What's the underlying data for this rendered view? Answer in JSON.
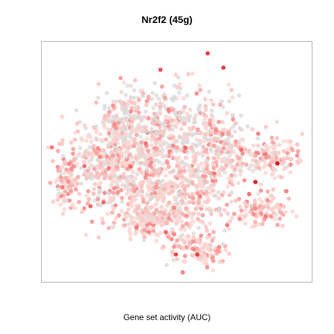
{
  "chart_data": {
    "type": "scatter",
    "title": "Nr2f2 (45g)",
    "xlabel": "Gene set activity (AUC)",
    "ylabel": "",
    "grid": false,
    "legend": "none",
    "color_scale": {
      "background_points": "#d9d9d9",
      "low": "#fbd6d2",
      "mid": "#f57b7b",
      "high": "#d7191c"
    },
    "clusters": [
      {
        "cx": 0.47,
        "cy": 0.35,
        "rx": 0.23,
        "ry": 0.16,
        "n": 430,
        "grey_frac": 0.45
      },
      {
        "cx": 0.27,
        "cy": 0.53,
        "rx": 0.16,
        "ry": 0.14,
        "n": 380,
        "grey_frac": 0.2
      },
      {
        "cx": 0.52,
        "cy": 0.62,
        "rx": 0.18,
        "ry": 0.16,
        "n": 380,
        "grey_frac": 0.22
      },
      {
        "cx": 0.68,
        "cy": 0.45,
        "rx": 0.1,
        "ry": 0.12,
        "n": 180,
        "grey_frac": 0.35
      },
      {
        "cx": 0.4,
        "cy": 0.74,
        "rx": 0.13,
        "ry": 0.08,
        "n": 170,
        "grey_frac": 0.12
      },
      {
        "cx": 0.86,
        "cy": 0.48,
        "rx": 0.09,
        "ry": 0.07,
        "n": 110,
        "grey_frac": 0.15
      },
      {
        "cx": 0.82,
        "cy": 0.7,
        "rx": 0.09,
        "ry": 0.07,
        "n": 110,
        "grey_frac": 0.1
      },
      {
        "cx": 0.58,
        "cy": 0.86,
        "rx": 0.1,
        "ry": 0.06,
        "n": 110,
        "grey_frac": 0.08
      },
      {
        "cx": 0.3,
        "cy": 0.32,
        "rx": 0.1,
        "ry": 0.1,
        "n": 120,
        "grey_frac": 0.45
      },
      {
        "cx": 0.09,
        "cy": 0.58,
        "rx": 0.05,
        "ry": 0.12,
        "n": 80,
        "grey_frac": 0.1
      }
    ],
    "highlighted_points": [
      {
        "x": 0.871,
        "y": 0.507,
        "level": 1.0
      },
      {
        "x": 0.79,
        "y": 0.584,
        "level": 0.95
      },
      {
        "x": 0.614,
        "y": 0.051,
        "level": 0.8
      },
      {
        "x": 0.672,
        "y": 0.11,
        "level": 0.8
      },
      {
        "x": 0.44,
        "y": 0.119,
        "level": 0.7
      },
      {
        "x": 0.576,
        "y": 0.884,
        "level": 0.8
      },
      {
        "x": 0.497,
        "y": 0.884,
        "level": 0.75
      },
      {
        "x": 0.532,
        "y": 0.442,
        "level": 0.6
      },
      {
        "x": 0.33,
        "y": 0.52,
        "level": 0.6
      },
      {
        "x": 0.16,
        "y": 0.518,
        "level": 0.55
      },
      {
        "x": 0.182,
        "y": 0.684,
        "level": 0.6
      },
      {
        "x": 0.23,
        "y": 0.668,
        "level": 0.6
      },
      {
        "x": 0.767,
        "y": 0.634,
        "level": 0.55
      },
      {
        "x": 0.738,
        "y": 0.45,
        "level": 0.55
      },
      {
        "x": 0.46,
        "y": 0.792,
        "level": 0.6
      },
      {
        "x": 0.686,
        "y": 0.762,
        "level": 0.5
      },
      {
        "x": 0.828,
        "y": 0.726,
        "level": 0.5
      },
      {
        "x": 0.04,
        "y": 0.44,
        "level": 0.5
      },
      {
        "x": 0.078,
        "y": 0.605,
        "level": 0.5
      },
      {
        "x": 0.386,
        "y": 0.424,
        "level": 0.55
      },
      {
        "x": 0.25,
        "y": 0.527,
        "level": 0.5
      },
      {
        "x": 0.352,
        "y": 0.772,
        "level": 0.5
      },
      {
        "x": 0.638,
        "y": 0.548,
        "level": 0.5
      },
      {
        "x": 0.904,
        "y": 0.622,
        "level": 0.45
      },
      {
        "x": 0.47,
        "y": 0.285,
        "level": 0.45
      },
      {
        "x": 0.586,
        "y": 0.642,
        "level": 0.45
      },
      {
        "x": 0.8,
        "y": 0.384,
        "level": 0.45
      },
      {
        "x": 0.27,
        "y": 0.61,
        "level": 0.4
      },
      {
        "x": 0.522,
        "y": 0.958,
        "level": 0.45
      }
    ]
  }
}
